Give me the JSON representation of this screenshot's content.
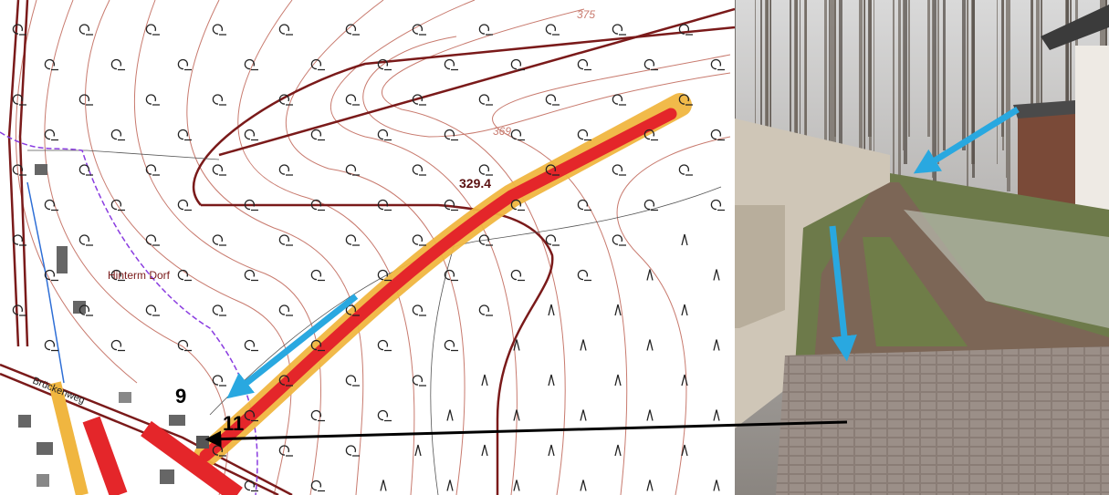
{
  "map": {
    "contour_labels": [
      "375",
      "369"
    ],
    "elevation_label": "329.4",
    "place_label": "Hinterm Dorf",
    "street_label": "Brückenweg",
    "point_labels": [
      "9",
      "11"
    ]
  }
}
